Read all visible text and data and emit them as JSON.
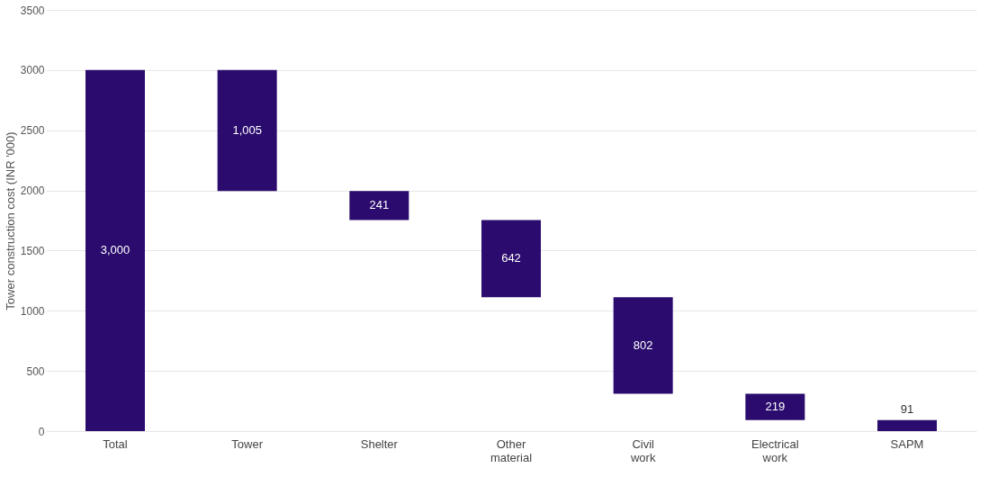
{
  "chart_data": {
    "type": "bar",
    "ylabel": "Tower construction cost (INR '000)",
    "categories": [
      "Total",
      "Tower",
      "Shelter",
      "Other material",
      "Civil work",
      "Electrical work",
      "SAPM"
    ],
    "values": [
      3000,
      1005,
      241,
      642,
      802,
      219,
      91
    ],
    "base": [
      0,
      1995,
      1754,
      1112,
      310,
      91,
      0
    ],
    "value_labels": [
      "3,000",
      "1,005",
      "241",
      "642",
      "802",
      "219",
      "91"
    ],
    "color": "#2b0c6e",
    "ylim": [
      0,
      3500
    ],
    "yticks": [
      0,
      500,
      1000,
      1500,
      2000,
      2500,
      3000,
      3500
    ],
    "grid": "y"
  }
}
